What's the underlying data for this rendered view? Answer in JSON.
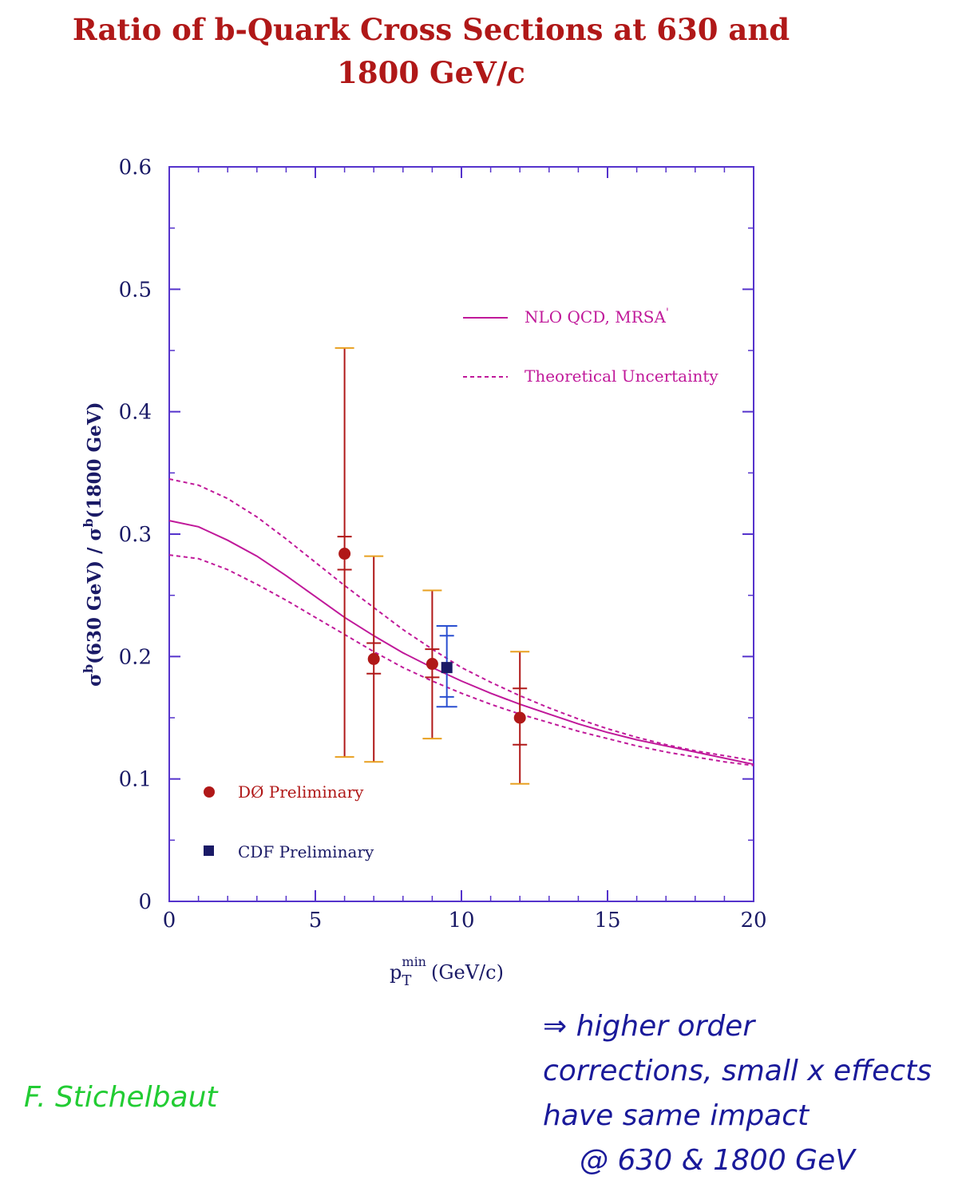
{
  "title": {
    "line1": "Ratio of b-Quark Cross Sections at 630 and",
    "line2": "1800 GeV/c"
  },
  "chart_data": {
    "type": "scatter",
    "xlabel_main": "p",
    "xlabel_sub": "T",
    "xlabel_sup": "min",
    "xlabel_unit": "(GeV/c)",
    "ylabel": "σ^b(630 GeV) / σ^b(1800 GeV)",
    "ylabel_parts": {
      "sigma1": "σ",
      "sup1": "b",
      "mid1": "(630 GeV) / ",
      "sigma2": "σ",
      "sup2": "b",
      "mid2": "(1800 GeV)"
    },
    "xlim": [
      0,
      20
    ],
    "ylim": [
      0,
      0.6
    ],
    "x_ticks": [
      "0",
      "5",
      "10",
      "15",
      "20"
    ],
    "y_ticks": [
      "0",
      "0.1",
      "0.2",
      "0.3",
      "0.4",
      "0.5",
      "0.6"
    ],
    "grid": false,
    "series": [
      {
        "name": "D0 Preliminary",
        "marker": "circle",
        "color": "#b01818",
        "points": [
          {
            "x": 6.0,
            "y": 0.284,
            "stat_low": 0.271,
            "stat_high": 0.298,
            "low": 0.118,
            "high": 0.452
          },
          {
            "x": 7.0,
            "y": 0.198,
            "stat_low": 0.186,
            "stat_high": 0.211,
            "low": 0.114,
            "high": 0.282
          },
          {
            "x": 9.0,
            "y": 0.194,
            "stat_low": 0.183,
            "stat_high": 0.206,
            "low": 0.133,
            "high": 0.254
          },
          {
            "x": 12.0,
            "y": 0.15,
            "stat_low": 0.128,
            "stat_high": 0.174,
            "low": 0.096,
            "high": 0.204
          }
        ]
      },
      {
        "name": "CDF Preliminary",
        "marker": "square",
        "color": "#1a1a66",
        "points": [
          {
            "x": 9.5,
            "y": 0.191,
            "stat_low": 0.167,
            "stat_high": 0.217,
            "low": 0.159,
            "high": 0.225
          }
        ]
      }
    ],
    "curves": [
      {
        "name": "NLO QCD, MRSA",
        "name_mark": "'",
        "style": "solid",
        "color": "#c0199a",
        "x": [
          0,
          1,
          2,
          3,
          4,
          5,
          6,
          7,
          8,
          9,
          10,
          11,
          12,
          13,
          14,
          15,
          16,
          17,
          18,
          19,
          20
        ],
        "y": [
          0.311,
          0.306,
          0.295,
          0.282,
          0.266,
          0.249,
          0.232,
          0.217,
          0.203,
          0.191,
          0.18,
          0.17,
          0.161,
          0.153,
          0.145,
          0.138,
          0.132,
          0.127,
          0.122,
          0.117,
          0.112
        ]
      },
      {
        "name": "Theoretical Uncertainty",
        "style": "dashed",
        "color": "#c0199a",
        "x": [
          0,
          1,
          2,
          3,
          4,
          5,
          6,
          7,
          8,
          9,
          10,
          11,
          12,
          13,
          14,
          15,
          16,
          17,
          18,
          19,
          20
        ],
        "y": [
          0.345,
          0.34,
          0.329,
          0.314,
          0.296,
          0.277,
          0.258,
          0.24,
          0.222,
          0.206,
          0.191,
          0.179,
          0.168,
          0.158,
          0.149,
          0.141,
          0.134,
          0.128,
          0.123,
          0.119,
          0.115
        ]
      },
      {
        "name": "",
        "style": "dashed",
        "color": "#c0199a",
        "x": [
          0,
          1,
          2,
          3,
          4,
          5,
          6,
          7,
          8,
          9,
          10,
          11,
          12,
          13,
          14,
          15,
          16,
          17,
          18,
          19,
          20
        ],
        "y": [
          0.283,
          0.28,
          0.271,
          0.259,
          0.246,
          0.232,
          0.218,
          0.204,
          0.191,
          0.18,
          0.17,
          0.161,
          0.153,
          0.146,
          0.139,
          0.133,
          0.127,
          0.122,
          0.118,
          0.114,
          0.111
        ]
      }
    ],
    "legend": {
      "placement": "upper-right and lower-left",
      "curve_labels": [
        "NLO QCD, MRSA",
        "Theoretical Uncertainty"
      ],
      "point_labels": [
        "DØ Preliminary",
        "CDF Preliminary"
      ]
    }
  },
  "annotations": {
    "signature": "F. Stichelbaut",
    "note_lines": [
      "⇒ higher order",
      "corrections, small x effects",
      "have same impact",
      "@ 630 & 1800 GeV"
    ]
  },
  "colors": {
    "title": "#b01818",
    "axes": "#5533cc",
    "axis_text": "#1a1a66",
    "d0": "#b01818",
    "d0_syst": "#e8a020",
    "cdf": "#1a1a66",
    "cdf_err": "#2a4fd0",
    "theory": "#c0199a",
    "signature": "#22cc33",
    "note": "#1a1a9a"
  }
}
